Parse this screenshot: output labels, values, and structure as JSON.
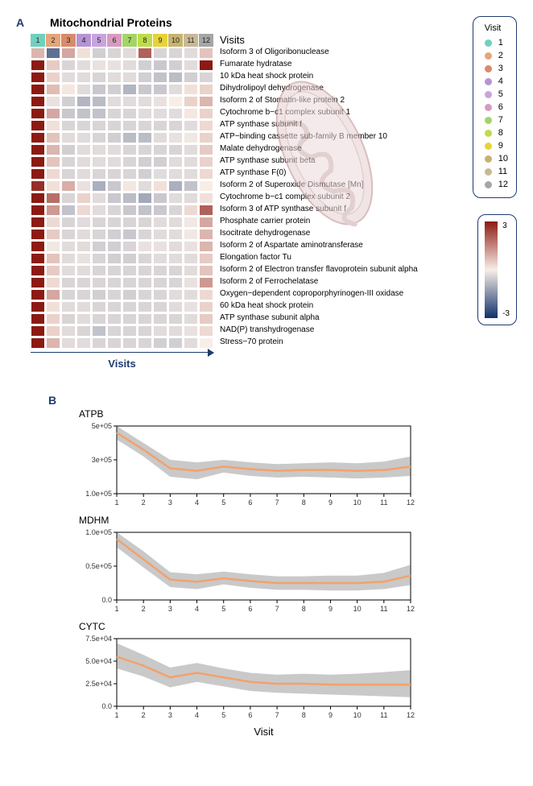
{
  "panelA": {
    "label": "A",
    "title": "Mitochondrial Proteins",
    "x_axis_label": "Visits",
    "visits_word": "Visits",
    "visit_header_colors": [
      "#6fd0c0",
      "#e6a57a",
      "#d88b6b",
      "#b694d4",
      "#c9a3dd",
      "#d89bbf",
      "#a4d468",
      "#bedc4a",
      "#e8d23a",
      "#c7b36d",
      "#c9b896",
      "#a6a6a6"
    ],
    "visit_numbers": [
      "1",
      "2",
      "3",
      "4",
      "5",
      "6",
      "7",
      "8",
      "9",
      "10",
      "11",
      "12"
    ],
    "row_labels": [
      "Isoform 3 of Oligoribonuclease",
      "Fumarate hydratase",
      "10 kDa heat shock protein",
      "Dihydrolipoyl dehydrogenase",
      "Isoform 2 of Stomatin-like protein 2",
      "Cytochrome b−c1 complex subunit 1",
      "ATP synthase subunit f",
      "ATP−binding cassette sub-family B member 10",
      "Malate dehydrogenase",
      "ATP synthase subunit beta",
      "ATP synthase F(0)",
      "Isoform 2 of Superoxide Dismutase [Mn]",
      "Cytochrome b−c1 complex subunit 2",
      "Isoform 3 of ATP synthase subunit f",
      "Phosphate carrier protein",
      "Isocitrate dehydrogenase",
      "Isoform 2 of Aspartate aminotransferase",
      "Elongation factor Tu",
      "Isoform 2 of Electron transfer flavoprotein subunit alpha",
      "Isoform 2 of Ferrochelatase",
      "Oxygen−dependent coproporphyrinogen-III oxidase",
      "60 kDa heat shock protein",
      "ATP synthase subunit alpha",
      "NAD(P) transhydrogenase",
      "Stress−70 protein"
    ],
    "heatmap_values": [
      [
        0.8,
        -2.0,
        1.0,
        0.2,
        -0.5,
        -0.4,
        -0.3,
        2.0,
        -0.4,
        -0.4,
        -0.3,
        0.6
      ],
      [
        3.0,
        0.5,
        -0.4,
        -0.3,
        -0.2,
        -0.2,
        -0.3,
        -0.5,
        -0.6,
        -0.5,
        -0.3,
        3.0
      ],
      [
        3.0,
        0.4,
        -0.3,
        -0.3,
        -0.4,
        -0.3,
        -0.3,
        -0.5,
        -0.7,
        -0.8,
        -0.5,
        -0.4
      ],
      [
        3.0,
        0.7,
        0.1,
        -0.3,
        -0.6,
        -0.5,
        -0.9,
        -0.6,
        -0.6,
        -0.3,
        0.2,
        0.4
      ],
      [
        3.0,
        -0.2,
        -0.5,
        -0.9,
        -0.8,
        -0.3,
        -0.3,
        -0.3,
        -0.2,
        0.0,
        0.4,
        0.8
      ],
      [
        3.0,
        1.0,
        -0.6,
        -0.7,
        -0.7,
        -0.4,
        -0.4,
        -0.3,
        -0.3,
        -0.3,
        0.1,
        0.4
      ],
      [
        3.0,
        0.2,
        -0.4,
        -0.4,
        -0.4,
        -0.4,
        -0.4,
        -0.4,
        -0.4,
        -0.4,
        -0.3,
        0.3
      ],
      [
        3.0,
        0.6,
        -0.3,
        -0.3,
        -0.4,
        -0.5,
        -0.8,
        -0.8,
        -0.3,
        -0.2,
        -0.1,
        0.4
      ],
      [
        3.0,
        0.8,
        -0.5,
        -0.3,
        -0.3,
        -0.3,
        -0.4,
        -0.4,
        -0.4,
        -0.4,
        -0.3,
        0.5
      ],
      [
        3.0,
        0.6,
        -0.4,
        -0.3,
        -0.3,
        -0.3,
        -0.4,
        -0.5,
        -0.5,
        -0.3,
        -0.3,
        0.4
      ],
      [
        3.0,
        0.3,
        -0.4,
        -0.3,
        -0.4,
        -0.4,
        -0.4,
        -0.5,
        -0.3,
        -0.3,
        -0.3,
        0.3
      ],
      [
        2.7,
        0.2,
        0.9,
        -0.2,
        -1.0,
        -0.6,
        0.1,
        -0.3,
        0.2,
        -1.0,
        -0.7,
        0.0
      ],
      [
        3.0,
        1.8,
        -0.4,
        0.4,
        -0.3,
        -0.6,
        -0.8,
        -1.1,
        -0.6,
        -0.3,
        -0.3,
        0.2
      ],
      [
        3.0,
        1.2,
        -0.7,
        0.3,
        -0.3,
        -0.4,
        -0.6,
        -0.7,
        -0.6,
        -0.4,
        0.3,
        2.0
      ],
      [
        3.0,
        0.3,
        -0.4,
        -0.3,
        -0.4,
        -0.4,
        -0.4,
        -0.4,
        -0.3,
        -0.3,
        -0.1,
        1.0
      ],
      [
        3.0,
        0.5,
        -0.4,
        -0.3,
        -0.4,
        -0.5,
        -0.6,
        -0.4,
        -0.3,
        -0.3,
        -0.1,
        0.8
      ],
      [
        3.0,
        -0.1,
        -0.3,
        -0.3,
        -0.5,
        -0.5,
        -0.4,
        -0.2,
        -0.2,
        -0.3,
        -0.2,
        0.8
      ],
      [
        3.0,
        0.6,
        -0.3,
        -0.2,
        -0.4,
        -0.5,
        -0.5,
        -0.4,
        -0.3,
        -0.3,
        -0.3,
        0.5
      ],
      [
        3.0,
        0.5,
        -0.3,
        -0.3,
        -0.4,
        -0.4,
        -0.4,
        -0.4,
        -0.4,
        -0.4,
        -0.3,
        0.6
      ],
      [
        3.0,
        0.3,
        -0.4,
        -0.4,
        -0.4,
        -0.4,
        -0.4,
        -0.4,
        -0.4,
        -0.4,
        -0.2,
        1.2
      ],
      [
        3.0,
        1.0,
        -0.4,
        -0.4,
        -0.5,
        -0.4,
        -0.5,
        -0.4,
        -0.4,
        -0.3,
        -0.3,
        0.3
      ],
      [
        3.0,
        0.2,
        -0.3,
        -0.3,
        -0.4,
        -0.4,
        -0.4,
        -0.4,
        -0.4,
        -0.3,
        -0.2,
        0.4
      ],
      [
        3.0,
        0.4,
        -0.4,
        -0.3,
        -0.4,
        -0.4,
        -0.4,
        -0.4,
        -0.4,
        -0.4,
        -0.3,
        0.5
      ],
      [
        3.0,
        0.4,
        -0.3,
        -0.4,
        -0.7,
        -0.4,
        -0.4,
        -0.4,
        -0.3,
        -0.3,
        -0.2,
        0.3
      ],
      [
        3.0,
        0.8,
        -0.3,
        -0.3,
        -0.4,
        -0.4,
        -0.4,
        -0.4,
        -0.5,
        -0.5,
        -0.3,
        0.0
      ]
    ],
    "scale_min": -3,
    "scale_max": 3,
    "color_low": "#10316b",
    "color_mid": "#f8eee7",
    "color_high": "#8c1a12"
  },
  "legend": {
    "title": "Visit",
    "items": [
      {
        "n": "1",
        "c": "#6fd0c0"
      },
      {
        "n": "2",
        "c": "#e6a57a"
      },
      {
        "n": "3",
        "c": "#d88b6b"
      },
      {
        "n": "4",
        "c": "#b694d4"
      },
      {
        "n": "5",
        "c": "#c9a3dd"
      },
      {
        "n": "6",
        "c": "#d89bbf"
      },
      {
        "n": "7",
        "c": "#a4d468"
      },
      {
        "n": "8",
        "c": "#bedc4a"
      },
      {
        "n": "9",
        "c": "#e8d23a"
      },
      {
        "n": "10",
        "c": "#c7b36d"
      },
      {
        "n": "11",
        "c": "#c9b896"
      },
      {
        "n": "12",
        "c": "#a6a6a6"
      }
    ]
  },
  "scale_legend": {
    "top": "3",
    "bottom": "-3"
  },
  "panelB": {
    "label": "B",
    "xlab": "Visit",
    "xticks": [
      1,
      2,
      3,
      4,
      5,
      6,
      7,
      8,
      9,
      10,
      11,
      12
    ],
    "line_color": "#f2a26b",
    "ribbon_color": "rgba(100,100,100,0.35)",
    "charts": [
      {
        "title": "ATPB",
        "ylim": [
          100000,
          500000
        ],
        "yticks": [
          {
            "v": 100000,
            "l": "1.0e+05"
          },
          {
            "v": 300000,
            "l": "3e+05"
          },
          {
            "v": 500000,
            "l": "5e+05"
          }
        ],
        "x": [
          1,
          2,
          3,
          4,
          5,
          6,
          7,
          8,
          9,
          10,
          11,
          12
        ],
        "mean": [
          460000,
          360000,
          250000,
          235000,
          260000,
          245000,
          235000,
          240000,
          240000,
          235000,
          240000,
          260000
        ],
        "lo": [
          420000,
          320000,
          200000,
          185000,
          225000,
          205000,
          195000,
          200000,
          195000,
          190000,
          195000,
          205000
        ],
        "hi": [
          500000,
          400000,
          300000,
          285000,
          300000,
          285000,
          275000,
          280000,
          285000,
          280000,
          290000,
          320000
        ]
      },
      {
        "title": "MDHM",
        "ylim": [
          0,
          100000
        ],
        "yticks": [
          {
            "v": 0,
            "l": "0.0"
          },
          {
            "v": 50000,
            "l": "0.5e+05"
          },
          {
            "v": 100000,
            "l": "1.0e+05"
          }
        ],
        "x": [
          1,
          2,
          3,
          4,
          5,
          6,
          7,
          8,
          9,
          10,
          11,
          12
        ],
        "mean": [
          90000,
          60000,
          30000,
          27000,
          32000,
          28000,
          25000,
          25000,
          25000,
          25000,
          27000,
          36000
        ],
        "lo": [
          78000,
          48000,
          19000,
          16000,
          23000,
          18000,
          15000,
          15000,
          14000,
          14000,
          16000,
          22000
        ],
        "hi": [
          100000,
          72000,
          41000,
          38000,
          42000,
          38000,
          35000,
          35000,
          36000,
          36000,
          40000,
          52000
        ]
      },
      {
        "title": "CYTC",
        "ylim": [
          0,
          75000
        ],
        "yticks": [
          {
            "v": 0,
            "l": "0.0"
          },
          {
            "v": 25000,
            "l": "2.5e+04"
          },
          {
            "v": 50000,
            "l": "5.0e+04"
          },
          {
            "v": 75000,
            "l": "7.5e+04"
          }
        ],
        "x": [
          1,
          2,
          3,
          4,
          5,
          6,
          7,
          8,
          9,
          10,
          11,
          12
        ],
        "mean": [
          55000,
          45000,
          32000,
          37000,
          32000,
          27000,
          25000,
          25000,
          24000,
          24000,
          24000,
          24000
        ],
        "lo": [
          42000,
          33000,
          21000,
          27000,
          22000,
          17000,
          15000,
          14000,
          13000,
          12000,
          11000,
          10000
        ],
        "hi": [
          70000,
          57000,
          43000,
          48000,
          42000,
          37000,
          35000,
          36000,
          35000,
          36000,
          38000,
          40000
        ]
      }
    ]
  }
}
